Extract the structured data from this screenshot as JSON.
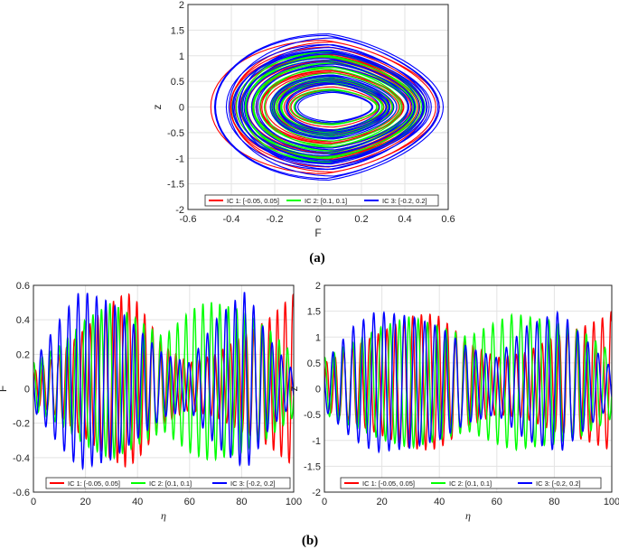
{
  "colors": {
    "ic1": "#ff0000",
    "ic2": "#00ff00",
    "ic3": "#0000ff"
  },
  "captions": {
    "a": "(a)",
    "b": "(b)"
  },
  "chart_data": [
    {
      "id": "a",
      "type": "line",
      "xlabel": "F",
      "ylabel": "z",
      "xlim": [
        -0.6,
        0.6
      ],
      "ylim": [
        -2,
        2
      ],
      "xticks": [
        "-0.6",
        "-0.4",
        "-0.2",
        "0",
        "0.2",
        "0.4",
        "0.6"
      ],
      "yticks": [
        "-2",
        "-1.5",
        "-1",
        "-0.5",
        "0",
        "0.5",
        "1",
        "1.5",
        "2"
      ],
      "grid": true,
      "legend": "bottom",
      "series": [
        {
          "name": "IC 1: [-0.05, 0.05]",
          "x": [
            -0.05,
            0.18,
            0.35,
            0.5,
            0.57,
            0.5,
            0.35,
            0.18,
            -0.05,
            -0.35,
            -0.53,
            -0.35,
            -0.05
          ],
          "y": [
            1.42,
            1.38,
            1.2,
            0.8,
            0.0,
            -0.8,
            -1.2,
            -1.38,
            -1.42,
            -1.2,
            0.0,
            1.2,
            1.42
          ]
        },
        {
          "name": "IC 2: [0.1, 0.1]",
          "x": [
            -0.05,
            0.18,
            0.35,
            0.5,
            0.56,
            0.5,
            0.35,
            0.18,
            -0.05,
            -0.35,
            -0.52,
            -0.35,
            -0.05
          ],
          "y": [
            1.4,
            1.36,
            1.18,
            0.78,
            0.0,
            -0.78,
            -1.18,
            -1.36,
            -1.4,
            -1.18,
            0.0,
            1.18,
            1.4
          ]
        },
        {
          "name": "IC 3: [-0.2, 0.2]",
          "x": [
            -0.05,
            0.18,
            0.35,
            0.5,
            0.58,
            0.5,
            0.35,
            0.18,
            -0.05,
            -0.35,
            -0.54,
            -0.35,
            -0.05
          ],
          "y": [
            1.5,
            1.45,
            1.25,
            0.82,
            0.0,
            -0.82,
            -1.25,
            -1.45,
            -1.5,
            -1.25,
            0.0,
            1.25,
            1.5
          ]
        }
      ]
    },
    {
      "id": "b-left",
      "type": "line",
      "xlabel": "η",
      "ylabel": "F",
      "xlim": [
        0,
        100
      ],
      "ylim": [
        -0.6,
        0.6
      ],
      "xticks": [
        "0",
        "20",
        "40",
        "60",
        "80",
        "100"
      ],
      "yticks": [
        "-0.6",
        "-0.4",
        "-0.2",
        "0",
        "0.2",
        "0.4",
        "0.6"
      ],
      "grid": true,
      "legend": "bottom",
      "series": [
        {
          "name": "IC 1: [-0.05, 0.05]",
          "x": [
            0,
            10,
            20,
            30,
            36,
            40,
            50,
            60,
            70,
            80,
            90,
            98,
            100
          ],
          "y": [
            0.1,
            0.2,
            0.35,
            0.5,
            0.56,
            0.5,
            0.25,
            0.15,
            0.2,
            0.3,
            0.4,
            0.52,
            0.55
          ]
        },
        {
          "name": "IC 2: [0.1, 0.1]",
          "x": [
            0,
            10,
            20,
            30,
            40,
            50,
            60,
            66,
            70,
            80,
            90,
            100
          ],
          "y": [
            0.15,
            0.25,
            0.4,
            0.5,
            0.4,
            0.3,
            0.45,
            0.5,
            0.5,
            0.45,
            0.35,
            0.2
          ]
        },
        {
          "name": "IC 3: [-0.2, 0.2]",
          "x": [
            0,
            10,
            18,
            20,
            30,
            40,
            50,
            60,
            70,
            80,
            82,
            90,
            100
          ],
          "y": [
            0.15,
            0.4,
            0.57,
            0.56,
            0.5,
            0.35,
            0.2,
            0.15,
            0.4,
            0.55,
            0.57,
            0.3,
            0.1
          ]
        }
      ]
    },
    {
      "id": "b-right",
      "type": "line",
      "xlabel": "η",
      "ylabel": "z",
      "xlim": [
        0,
        100
      ],
      "ylim": [
        -2,
        2
      ],
      "xticks": [
        "0",
        "20",
        "40",
        "60",
        "80",
        "100"
      ],
      "yticks": [
        "-2",
        "-1.5",
        "-1",
        "-0.5",
        "0",
        "0.5",
        "1",
        "1.5",
        "2"
      ],
      "grid": true,
      "legend": "bottom",
      "series": [
        {
          "name": "IC 1: [-0.05, 0.05]",
          "x": [
            0,
            10,
            20,
            30,
            36,
            40,
            50,
            60,
            70,
            80,
            90,
            98,
            100
          ],
          "y": [
            0.5,
            0.8,
            1.1,
            1.4,
            1.45,
            1.4,
            0.9,
            0.6,
            0.7,
            1.0,
            1.2,
            1.4,
            1.5
          ]
        },
        {
          "name": "IC 2: [0.1, 0.1]",
          "x": [
            0,
            10,
            20,
            30,
            40,
            50,
            60,
            66,
            70,
            80,
            90,
            100
          ],
          "y": [
            0.6,
            0.9,
            1.2,
            1.4,
            1.2,
            1.0,
            1.3,
            1.45,
            1.4,
            1.3,
            1.1,
            0.7
          ]
        },
        {
          "name": "IC 3: [-0.2, 0.2]",
          "x": [
            0,
            10,
            18,
            20,
            30,
            40,
            50,
            60,
            70,
            80,
            82,
            90,
            100
          ],
          "y": [
            0.5,
            1.2,
            1.5,
            1.48,
            1.4,
            1.2,
            0.8,
            0.6,
            1.2,
            1.45,
            1.5,
            1.0,
            0.4
          ]
        }
      ]
    }
  ]
}
